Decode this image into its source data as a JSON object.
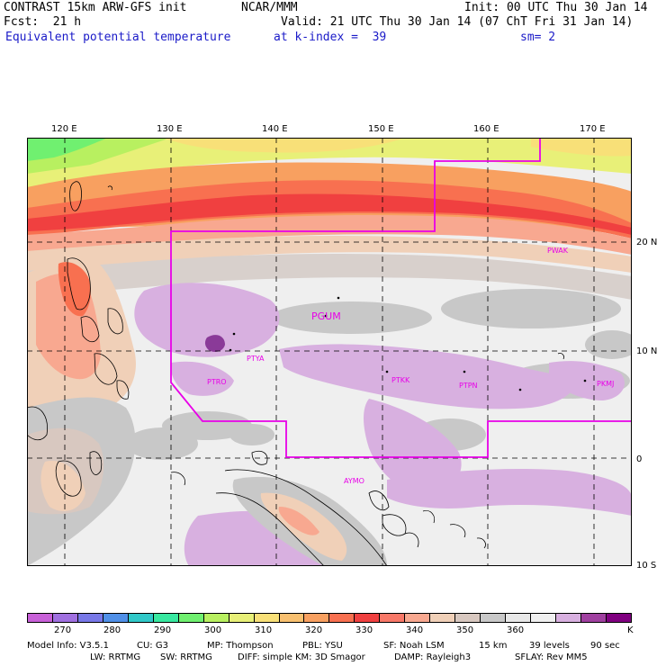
{
  "header": {
    "model": "CONTRAST 15km ARW-GFS init",
    "org": "NCAR/MMM",
    "init": "Init: 00 UTC Thu 30 Jan 14",
    "fcst": "Fcst:  21 h",
    "valid": "Valid: 21 UTC Thu 30 Jan 14 (07 ChT Fri 31 Jan 14)",
    "field": "Equivalent potential temperature",
    "level": "at k-index =  39",
    "smooth": "sm= 2"
  },
  "map": {
    "lon_labels": [
      "120 E",
      "130 E",
      "140 E",
      "150 E",
      "160 E",
      "170 E"
    ],
    "lat_labels": [
      "20 N",
      "10 N",
      "0",
      "10 S"
    ],
    "stations": [
      {
        "id": "PGUM"
      },
      {
        "id": "PTYA"
      },
      {
        "id": "PTRO"
      },
      {
        "id": "PTKK"
      },
      {
        "id": "PTPN"
      },
      {
        "id": "PKMJ"
      },
      {
        "id": "PWAK"
      },
      {
        "id": "AYMO"
      }
    ],
    "domain_color": "#e800e8"
  },
  "colorbar": {
    "labels": [
      "270",
      "280",
      "290",
      "300",
      "310",
      "320",
      "330",
      "340",
      "350",
      "360"
    ],
    "units": "K",
    "colors": [
      "#c860d8",
      "#a070e0",
      "#7878e8",
      "#5090e8",
      "#30c8c8",
      "#38e8a0",
      "#70f070",
      "#b8f060",
      "#e8f078",
      "#f8e078",
      "#f8c070",
      "#f8a060",
      "#f87050",
      "#f04040",
      "#f87868",
      "#f8a890",
      "#f0d0b8",
      "#d8c8c0",
      "#c8c8c8",
      "#e8e8e8",
      "#f0f0f0",
      "#d8b0e0",
      "#a040a0",
      "#800080"
    ]
  },
  "footer": {
    "line1": [
      "Model Info: V3.5.1",
      "CU: G3",
      "MP: Thompson",
      "PBL: YSU",
      "SF: Noah LSM",
      "15 km",
      "39 levels",
      "90 sec"
    ],
    "line2": [
      "LW: RRTMG",
      "SW: RRTMG",
      "DIFF: simple",
      "KM: 3D Smagor",
      "DAMP: Rayleigh3",
      "SFLAY: Rev MM5"
    ]
  }
}
